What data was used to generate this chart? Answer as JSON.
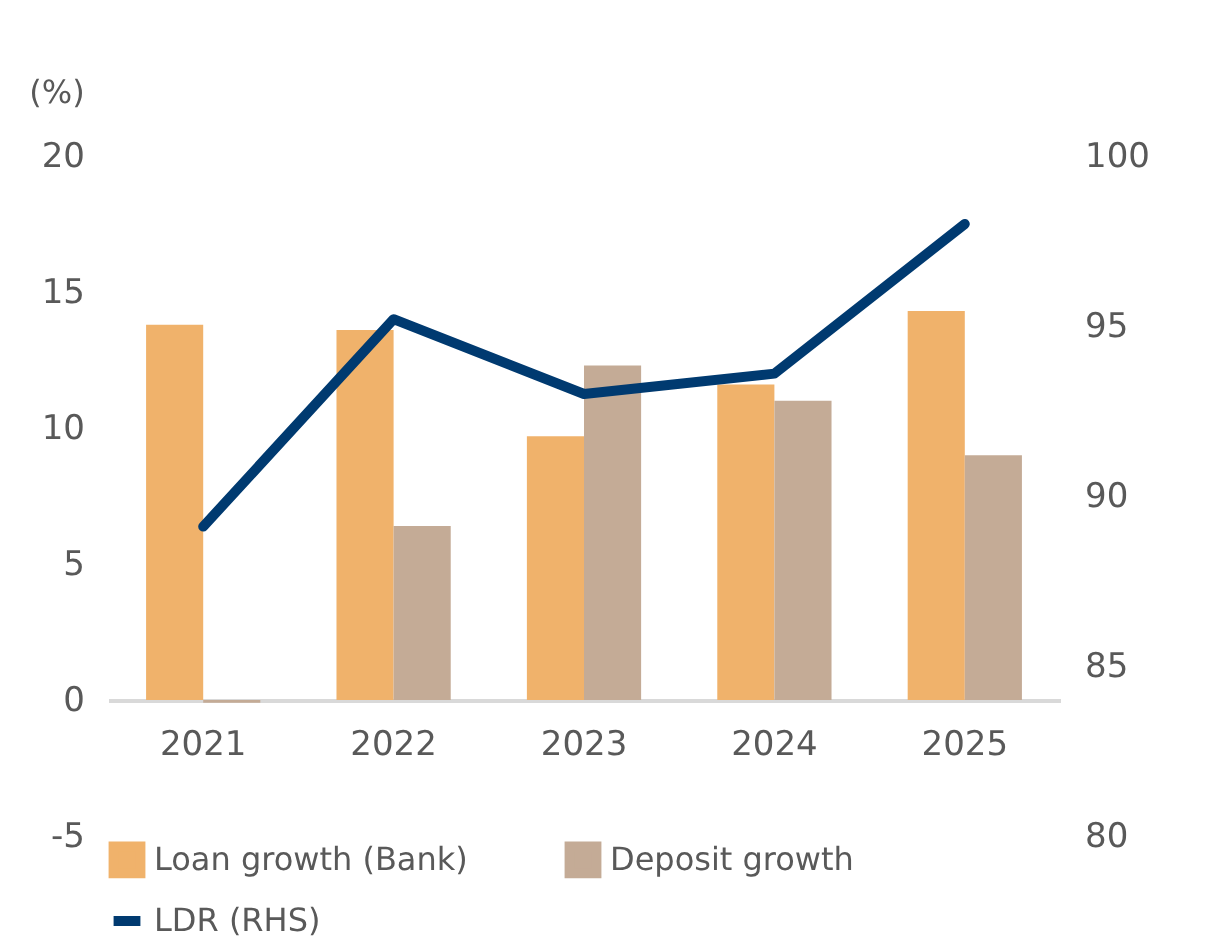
{
  "chart_data": {
    "type": "bar",
    "ylabel": "(%)",
    "categories": [
      "2021",
      "2022",
      "2023",
      "2024",
      "2025"
    ],
    "series": [
      {
        "name": "Loan growth (Bank)",
        "color": "#f0b26b",
        "values": [
          13.8,
          13.6,
          9.7,
          11.6,
          14.3
        ]
      },
      {
        "name": "Deposit growth",
        "color": "#c4ab96",
        "values": [
          -0.1,
          6.4,
          12.3,
          11.0,
          9.0
        ]
      },
      {
        "name": "LDR (RHS)",
        "type": "line",
        "axis": "y2",
        "color": "#003a70",
        "values": [
          89.1,
          95.2,
          93.0,
          93.6,
          98.0
        ]
      }
    ],
    "ylim": [
      -5,
      20
    ],
    "yticks": [
      -5,
      0,
      5,
      10,
      15,
      20
    ],
    "y2lim": [
      80,
      100
    ],
    "y2ticks": [
      80,
      85,
      90,
      95,
      100
    ],
    "grid": false,
    "legend": "bottom"
  }
}
